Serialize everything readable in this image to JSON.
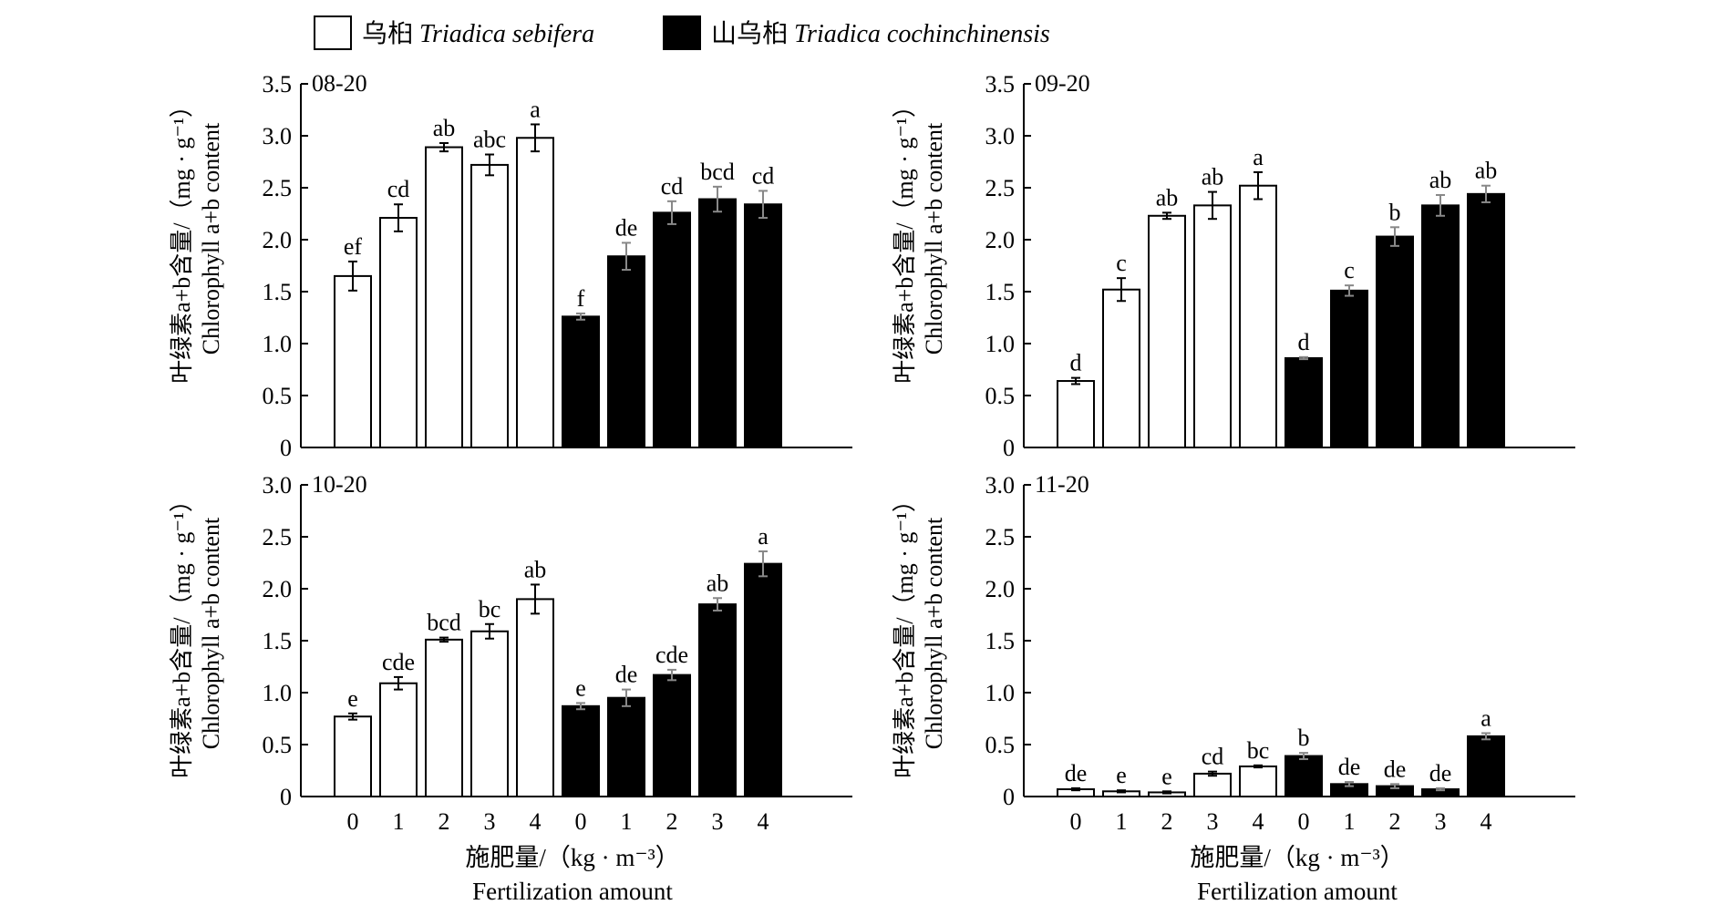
{
  "legend": [
    {
      "cn": "乌桕 ",
      "latin": "Triadica sebifera",
      "color": "#ffffff"
    },
    {
      "cn": "山乌桕 ",
      "latin": "Triadica cochinchinensis",
      "color": "#000000"
    }
  ],
  "y_label_cn": "叶绿素a+b含量/（mg · g⁻¹）",
  "y_label_en": "Chlorophyll a+b content",
  "x_label_cn": "施肥量/（kg · m⁻³）",
  "x_label_en": "Fertilization amount",
  "chart_data": [
    {
      "type": "bar",
      "title": "08-20",
      "categories": [
        "0",
        "1",
        "2",
        "3",
        "4",
        "0",
        "1",
        "2",
        "3",
        "4"
      ],
      "ylim": [
        0,
        3.5
      ],
      "yticks": [
        "0",
        "0.5",
        "1.0",
        "1.5",
        "2.0",
        "2.5",
        "3.0",
        "3.5"
      ],
      "values": [
        1.65,
        2.21,
        2.89,
        2.72,
        2.98,
        1.26,
        1.84,
        2.26,
        2.39,
        2.34
      ],
      "errors": [
        0.14,
        0.13,
        0.04,
        0.1,
        0.13,
        0.03,
        0.13,
        0.11,
        0.12,
        0.13
      ],
      "labels": [
        "ef",
        "cd",
        "ab",
        "abc",
        "a",
        "f",
        "de",
        "cd",
        "bcd",
        "cd"
      ],
      "colors": [
        "#ffffff",
        "#ffffff",
        "#ffffff",
        "#ffffff",
        "#ffffff",
        "#000000",
        "#000000",
        "#000000",
        "#000000",
        "#000000"
      ]
    },
    {
      "type": "bar",
      "title": "09-20",
      "categories": [
        "0",
        "1",
        "2",
        "3",
        "4",
        "0",
        "1",
        "2",
        "3",
        "4"
      ],
      "ylim": [
        0,
        3.5
      ],
      "yticks": [
        "0",
        "0.5",
        "1.0",
        "1.5",
        "2.0",
        "2.5",
        "3.0",
        "3.5"
      ],
      "values": [
        0.64,
        1.52,
        2.23,
        2.33,
        2.52,
        0.86,
        1.51,
        2.03,
        2.33,
        2.44
      ],
      "errors": [
        0.03,
        0.11,
        0.03,
        0.13,
        0.13,
        0.01,
        0.05,
        0.09,
        0.1,
        0.08
      ],
      "labels": [
        "d",
        "c",
        "ab",
        "ab",
        "a",
        "d",
        "c",
        "b",
        "ab",
        "ab"
      ],
      "colors": [
        "#ffffff",
        "#ffffff",
        "#ffffff",
        "#ffffff",
        "#ffffff",
        "#000000",
        "#000000",
        "#000000",
        "#000000",
        "#000000"
      ]
    },
    {
      "type": "bar",
      "title": "10-20",
      "categories": [
        "0",
        "1",
        "2",
        "3",
        "4",
        "0",
        "1",
        "2",
        "3",
        "4"
      ],
      "ylim": [
        0,
        3.0
      ],
      "yticks": [
        "0",
        "0.5",
        "1.0",
        "1.5",
        "2.0",
        "2.5",
        "3.0"
      ],
      "values": [
        0.77,
        1.09,
        1.51,
        1.59,
        1.9,
        0.87,
        0.95,
        1.17,
        1.85,
        2.24
      ],
      "errors": [
        0.03,
        0.06,
        0.02,
        0.07,
        0.14,
        0.03,
        0.08,
        0.05,
        0.06,
        0.12
      ],
      "labels": [
        "e",
        "cde",
        "bcd",
        "bc",
        "ab",
        "e",
        "de",
        "cde",
        "ab",
        "a"
      ],
      "colors": [
        "#ffffff",
        "#ffffff",
        "#ffffff",
        "#ffffff",
        "#ffffff",
        "#000000",
        "#000000",
        "#000000",
        "#000000",
        "#000000"
      ]
    },
    {
      "type": "bar",
      "title": "11-20",
      "categories": [
        "0",
        "1",
        "2",
        "3",
        "4",
        "0",
        "1",
        "2",
        "3",
        "4"
      ],
      "ylim": [
        0,
        3.0
      ],
      "yticks": [
        "0",
        "0.5",
        "1.0",
        "1.5",
        "2.0",
        "2.5",
        "3.0"
      ],
      "values": [
        0.07,
        0.05,
        0.04,
        0.22,
        0.29,
        0.39,
        0.12,
        0.1,
        0.07,
        0.58
      ],
      "errors": [
        0.01,
        0.01,
        0.01,
        0.02,
        0.01,
        0.03,
        0.02,
        0.02,
        0.01,
        0.03
      ],
      "labels": [
        "de",
        "e",
        "e",
        "cd",
        "bc",
        "b",
        "de",
        "de",
        "de",
        "a"
      ],
      "colors": [
        "#ffffff",
        "#ffffff",
        "#ffffff",
        "#ffffff",
        "#ffffff",
        "#000000",
        "#000000",
        "#000000",
        "#000000",
        "#000000"
      ]
    }
  ]
}
